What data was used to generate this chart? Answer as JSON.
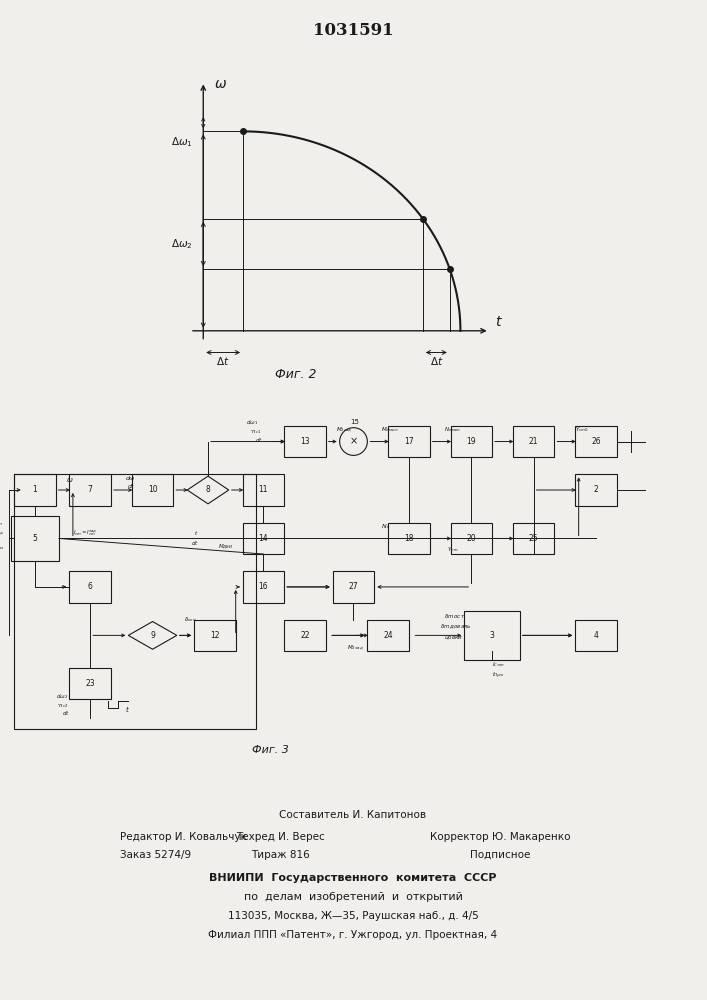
{
  "title": "1031591",
  "fig2_caption": "Фиг. 2",
  "fig3_caption": "Фиг. 3",
  "bg_color": "#f0efeb",
  "line_color": "#1a1a1a",
  "footer_col1_line1": "Редактор И. Ковальчук",
  "footer_col1_line2": "Заказ 5274/9",
  "footer_col2_top": "Составитель И. Капитонов",
  "footer_col2_line1": "Техред И. Верес",
  "footer_col2_line2": "Тираж 816",
  "footer_col3_line1": "Корректор Ю. Макаренко",
  "footer_col3_line2": "Подписное",
  "footer_vnipi1": "ВНИИПИ  Государственного  комитета  СССР",
  "footer_vnipi2": "по  делам  изобретений  и  открытий",
  "footer_addr1": "113035, Москва, Ж—35, Раушская наб., д. 4/5",
  "footer_addr2": "Филиал ППП «Патент», г. Ужгород, ул. Проектная, 4"
}
